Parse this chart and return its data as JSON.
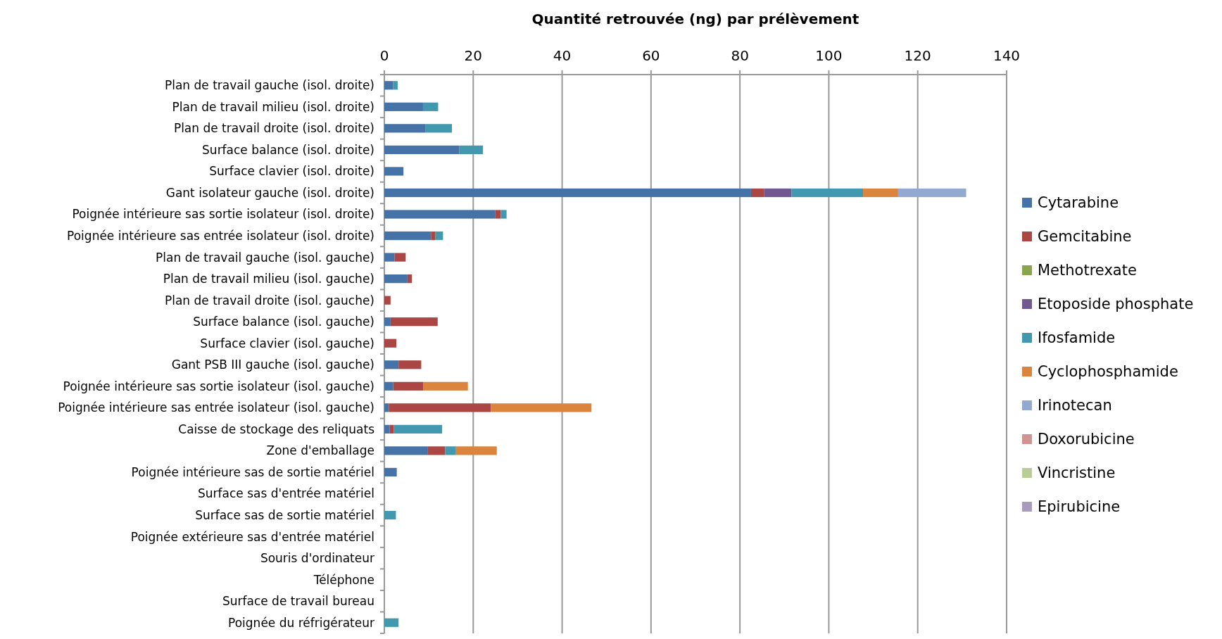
{
  "chart_data": {
    "type": "bar",
    "orientation": "horizontal",
    "stacked": true,
    "xlabel": "Quantité retrouvée (ng) par prélèvement",
    "xlim": [
      0,
      140
    ],
    "xticks": [
      0,
      20,
      40,
      60,
      80,
      100,
      120,
      140
    ],
    "grid": "x",
    "legend": "right",
    "categories": [
      "Plan de travail gauche (isol. droite)",
      "Plan de travail milieu (isol. droite)",
      "Plan de travail droite (isol. droite)",
      "Surface balance (isol. droite)",
      "Surface clavier (isol. droite)",
      "Gant isolateur gauche (isol. droite)",
      "Poignée intérieure sas sortie isolateur (isol. droite)",
      "Poignée intérieure sas entrée isolateur (isol. droite)",
      "Plan de travail gauche (isol. gauche)",
      "Plan de travail milieu (isol. gauche)",
      "Plan de travail droite (isol. gauche)",
      "Surface balance (isol. gauche)",
      "Surface clavier (isol. gauche)",
      "Gant PSB III gauche (isol. gauche)",
      "Poignée intérieure sas sortie isolateur (isol. gauche)",
      "Poignée intérieure sas entrée isolateur (isol. gauche)",
      "Caisse de stockage des reliquats",
      "Zone d'emballage",
      "Poignée intérieure sas de sortie matériel",
      "Surface sas d'entrée matériel",
      "Surface sas de sortie matériel",
      "Poignée extérieure sas d'entrée matériel",
      "Souris d'ordinateur",
      "Téléphone",
      "Surface de travail bureau",
      "Poignée du réfrigérateur"
    ],
    "series": [
      {
        "name": "Cytarabine",
        "color": "#4572a7",
        "values": [
          2.0,
          8.7,
          9.2,
          16.9,
          4.3,
          82.5,
          24.9,
          10.5,
          2.3,
          5.2,
          0,
          1.4,
          0,
          3.2,
          2.0,
          1.0,
          1.2,
          9.8,
          2.8,
          0,
          0,
          0,
          0,
          0,
          0,
          0
        ]
      },
      {
        "name": "Gemcitabine",
        "color": "#aa4643",
        "values": [
          0,
          0,
          0,
          0,
          0,
          2.9,
          1.3,
          1.0,
          2.5,
          1.0,
          1.4,
          10.6,
          2.7,
          5.1,
          6.8,
          23.0,
          0.9,
          3.9,
          0,
          0,
          0,
          0,
          0,
          0,
          0,
          0
        ]
      },
      {
        "name": "Methotrexate",
        "color": "#89a54e",
        "values": [
          0,
          0,
          0,
          0,
          0,
          0,
          0,
          0,
          0,
          0,
          0,
          0,
          0,
          0,
          0,
          0,
          0,
          0,
          0,
          0,
          0,
          0,
          0,
          0,
          0,
          0
        ]
      },
      {
        "name": "Etoposide phosphate",
        "color": "#71588f",
        "values": [
          0,
          0,
          0,
          0,
          0,
          6.2,
          0,
          0,
          0,
          0,
          0,
          0,
          0,
          0,
          0,
          0,
          0,
          0,
          0,
          0,
          0,
          0,
          0,
          0,
          0,
          0
        ]
      },
      {
        "name": "Ifosfamide",
        "color": "#4198af",
        "values": [
          1.0,
          3.4,
          6.0,
          5.3,
          0,
          16.1,
          1.3,
          1.7,
          0,
          0,
          0,
          0,
          0,
          0,
          0,
          0,
          10.9,
          2.3,
          0,
          0,
          2.6,
          0,
          0,
          0,
          0,
          3.2
        ]
      },
      {
        "name": "Cyclophosphamide",
        "color": "#db843d",
        "values": [
          0,
          0,
          0,
          0,
          0,
          7.9,
          0,
          0,
          0,
          0,
          0,
          0,
          0,
          0,
          10.0,
          22.6,
          0,
          9.3,
          0,
          0,
          0,
          0,
          0,
          0,
          0,
          0
        ]
      },
      {
        "name": "Irinotecan",
        "color": "#93a9cf",
        "values": [
          0,
          0,
          0,
          0,
          0,
          15.3,
          0,
          0,
          0,
          0,
          0,
          0,
          0,
          0,
          0,
          0,
          0,
          0,
          0,
          0,
          0,
          0,
          0,
          0,
          0,
          0
        ]
      },
      {
        "name": "Doxorubicine",
        "color": "#d19392",
        "values": [
          0,
          0,
          0,
          0,
          0,
          0,
          0,
          0,
          0,
          0,
          0,
          0,
          0,
          0,
          0,
          0,
          0,
          0,
          0,
          0,
          0,
          0,
          0,
          0,
          0,
          0
        ]
      },
      {
        "name": "Vincristine",
        "color": "#b9cd96",
        "values": [
          0,
          0,
          0,
          0,
          0,
          0,
          0,
          0,
          0,
          0,
          0,
          0,
          0,
          0,
          0,
          0,
          0,
          0,
          0,
          0,
          0,
          0,
          0,
          0,
          0,
          0
        ]
      },
      {
        "name": "Epirubicine",
        "color": "#a99bbd",
        "values": [
          0,
          0,
          0,
          0,
          0,
          0,
          0,
          0,
          0,
          0,
          0,
          0,
          0,
          0,
          0,
          0,
          0,
          0,
          0,
          0,
          0,
          0,
          0,
          0,
          0,
          0
        ]
      }
    ]
  }
}
